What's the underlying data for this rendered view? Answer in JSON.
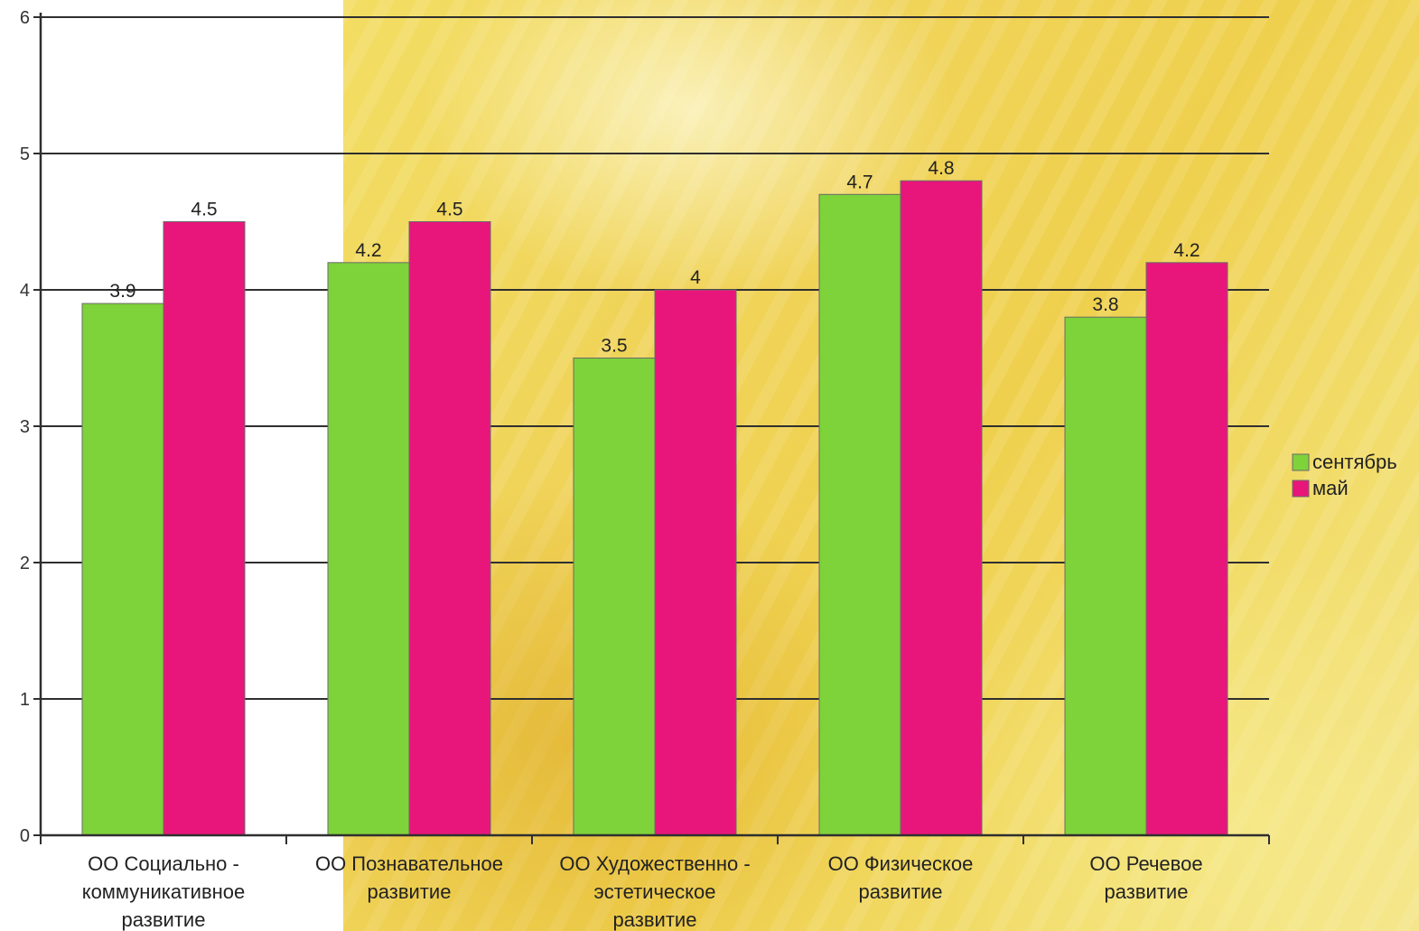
{
  "chart_data": {
    "type": "bar",
    "categories": [
      [
        "ОО Социально -",
        "коммуникативное",
        "развитие"
      ],
      [
        "ОО Познавательное",
        "развитие"
      ],
      [
        "ОО Художественно -",
        "эстетическое",
        "развитие"
      ],
      [
        "ОО Физическое",
        "развитие"
      ],
      [
        "ОО Речевое",
        "развитие"
      ]
    ],
    "series": [
      {
        "name": "сентябрь",
        "color": "#7ed23a",
        "values": [
          3.9,
          4.2,
          3.5,
          4.7,
          3.8
        ],
        "labels": [
          "3.9",
          "4.2",
          "3.5",
          "4.7",
          "3.8"
        ]
      },
      {
        "name": "май",
        "color": "#e8167a",
        "values": [
          4.5,
          4.5,
          4.0,
          4.8,
          4.2
        ],
        "labels": [
          "4.5",
          "4.5",
          "4",
          "4.8",
          "4.2"
        ]
      }
    ],
    "ylim": [
      0,
      6
    ],
    "yticks": [
      "0",
      "1",
      "2",
      "3",
      "4",
      "5",
      "6"
    ],
    "grid": true,
    "legend_position": "right"
  }
}
